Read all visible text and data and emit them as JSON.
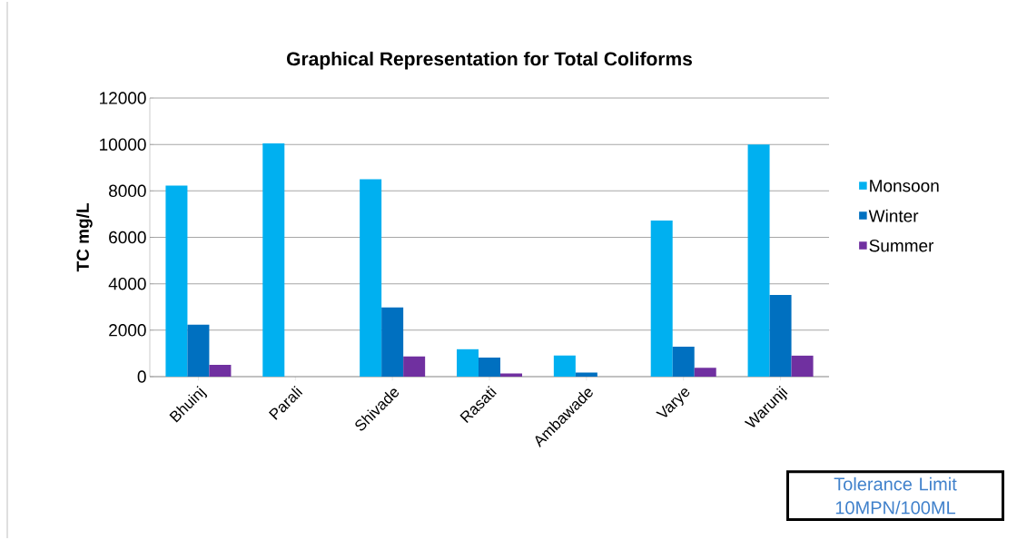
{
  "chart_data": {
    "type": "bar",
    "title": "Graphical Representation for  Total Coliforms",
    "ylabel": "TC mg/L",
    "categories": [
      "Bhuinj",
      "Parali",
      "Shivade",
      "Rasati",
      "Ambawade",
      "Varye",
      "Warunji"
    ],
    "series": [
      {
        "name": "Monsoon",
        "color": "#00b0f0",
        "values": [
          8230,
          10050,
          8500,
          1180,
          910,
          6720,
          10000
        ]
      },
      {
        "name": "Winter",
        "color": "#0070c0",
        "values": [
          2240,
          0,
          2980,
          820,
          180,
          1290,
          3520
        ]
      },
      {
        "name": "Summer",
        "color": "#7030a0",
        "values": [
          510,
          0,
          870,
          140,
          0,
          380,
          910
        ]
      }
    ],
    "ylim": [
      0,
      12000
    ],
    "yticks": [
      0,
      2000,
      4000,
      6000,
      8000,
      10000,
      12000
    ],
    "grid": "y",
    "legend": "right",
    "annotations": [
      "Tolerance Limit 10MPN/100ML"
    ]
  }
}
